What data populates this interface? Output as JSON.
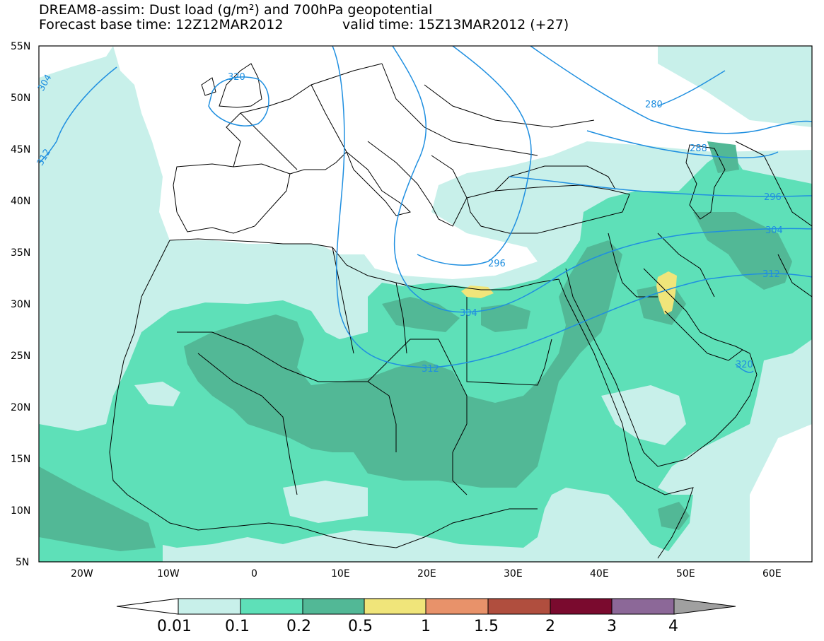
{
  "header": {
    "title": "DREAM8-assim: Dust load (g/m²) and 700hPa geopotential",
    "base_time": "Forecast base time: 12Z12MAR2012",
    "valid_time": "valid time: 15Z13MAR2012 (+27)"
  },
  "map": {
    "lat_labels": [
      "55N",
      "50N",
      "45N",
      "40N",
      "35N",
      "30N",
      "25N",
      "20N",
      "15N",
      "10N",
      "5N"
    ],
    "lon_labels": [
      "20W",
      "10W",
      "0",
      "10E",
      "20E",
      "30E",
      "40E",
      "50E",
      "60E"
    ],
    "contour_labels": [
      "304",
      "312",
      "320",
      "280",
      "288",
      "296",
      "304",
      "312",
      "320",
      "296",
      "304",
      "312"
    ]
  },
  "colorbar": {
    "labels": [
      "0.01",
      "0.1",
      "0.2",
      "0.5",
      "1",
      "1.5",
      "2",
      "3",
      "4"
    ],
    "colors": [
      "#c8f0ea",
      "#5ee0b8",
      "#52b896",
      "#f0e57a",
      "#e8926a",
      "#b04e3e",
      "#7a0a2e",
      "#8c6898",
      "#a0a0a0"
    ]
  },
  "colors": {
    "contour": "#1f8fe0",
    "dust_001": "#c8f0ea",
    "dust_01": "#5ee0b8",
    "dust_02": "#52b896",
    "dust_05": "#f0e57a"
  }
}
